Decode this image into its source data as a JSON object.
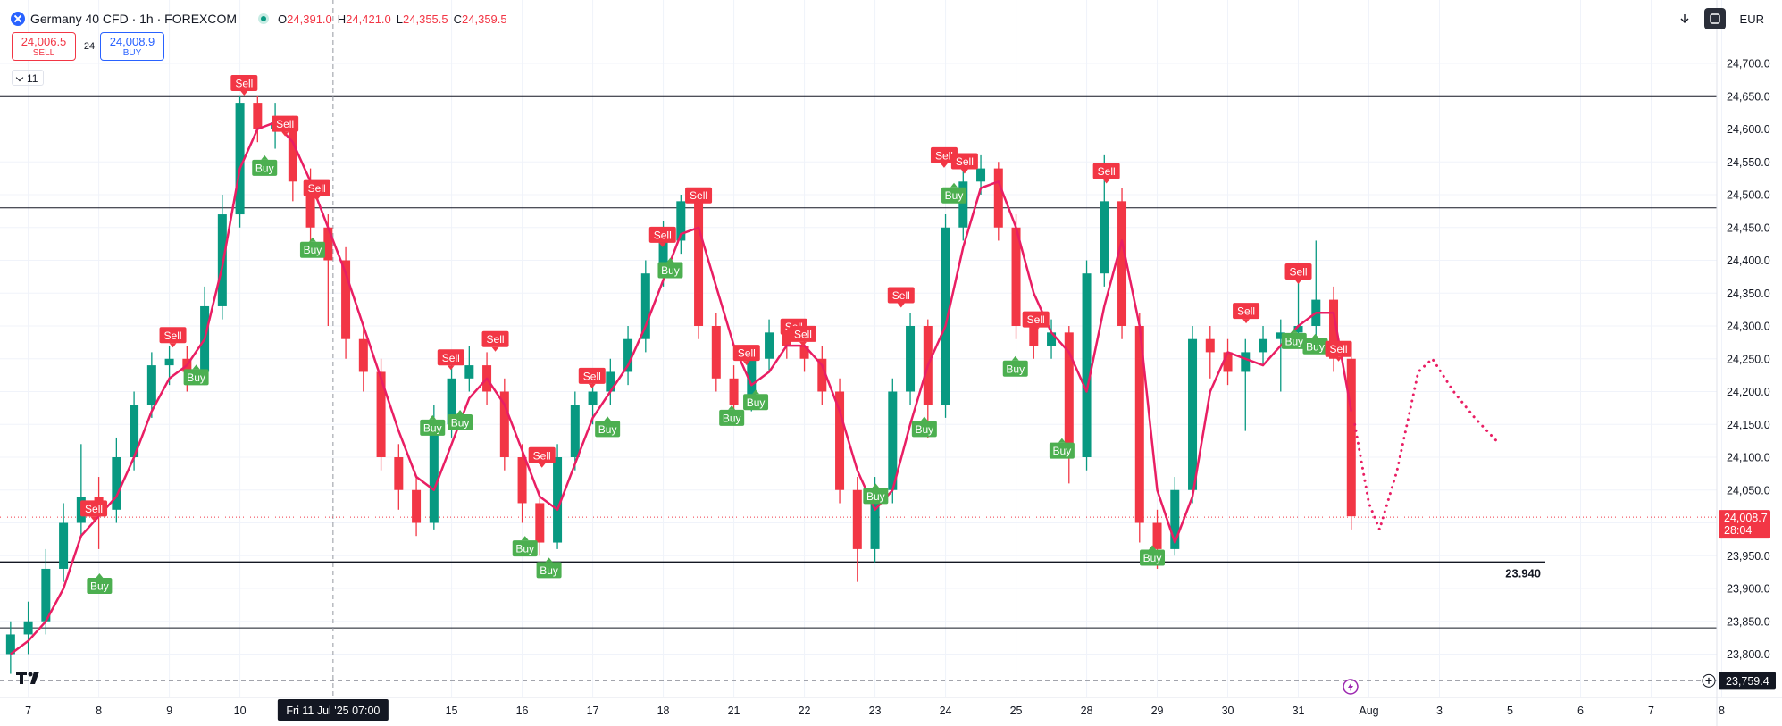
{
  "header": {
    "symbol": "Germany 40 CFD · 1h · FOREXCOM",
    "ohlc": [
      {
        "key": "O",
        "value": "24,391.0"
      },
      {
        "key": "H",
        "value": "24,421.0"
      },
      {
        "key": "L",
        "value": "24,355.5"
      },
      {
        "key": "C",
        "value": "24,359.5"
      }
    ],
    "sell": {
      "price": "24,006.5",
      "label": "SELL"
    },
    "spread": "24",
    "buy": {
      "price": "24,008.9",
      "label": "BUY"
    },
    "indicators": "11",
    "currency": "EUR"
  },
  "chart_data": {
    "type": "candlestick",
    "up_color": "#089981",
    "down_color": "#f23645",
    "ma_color": "#e91e63",
    "grid": true,
    "xlim": [
      -0.4,
      24.5
    ],
    "ylim": [
      23700,
      24800
    ],
    "xticks": [
      {
        "value": 0,
        "label": "7"
      },
      {
        "value": 1,
        "label": "8"
      },
      {
        "value": 2,
        "label": "9"
      },
      {
        "value": 3,
        "label": "10"
      },
      {
        "value": 6,
        "label": "15"
      },
      {
        "value": 7,
        "label": "16"
      },
      {
        "value": 8,
        "label": "17"
      },
      {
        "value": 9,
        "label": "18"
      },
      {
        "value": 10,
        "label": "21"
      },
      {
        "value": 11,
        "label": "22"
      },
      {
        "value": 12,
        "label": "23"
      },
      {
        "value": 13,
        "label": "24"
      },
      {
        "value": 14,
        "label": "25"
      },
      {
        "value": 15,
        "label": "28"
      },
      {
        "value": 16,
        "label": "29"
      },
      {
        "value": 17,
        "label": "30"
      },
      {
        "value": 18,
        "label": "31"
      },
      {
        "value": 19,
        "label": "Aug"
      },
      {
        "value": 20,
        "label": "3"
      },
      {
        "value": 21,
        "label": "5"
      },
      {
        "value": 22,
        "label": "6"
      },
      {
        "value": 23,
        "label": "7"
      },
      {
        "value": 24,
        "label": "8"
      }
    ],
    "yticks": [
      {
        "value": 23800,
        "label": "23,800.0"
      },
      {
        "value": 23850,
        "label": "23,850.0"
      },
      {
        "value": 23900,
        "label": "23,900.0"
      },
      {
        "value": 23950,
        "label": "23,950.0"
      },
      {
        "value": 24000,
        "label": "24,000.0"
      },
      {
        "value": 24050,
        "label": "24,050.0"
      },
      {
        "value": 24100,
        "label": "24,100.0"
      },
      {
        "value": 24150,
        "label": "24,150.0"
      },
      {
        "value": 24200,
        "label": "24,200.0"
      },
      {
        "value": 24250,
        "label": "24,250.0"
      },
      {
        "value": 24300,
        "label": "24,300.0"
      },
      {
        "value": 24350,
        "label": "24,350.0"
      },
      {
        "value": 24400,
        "label": "24,400.0"
      },
      {
        "value": 24450,
        "label": "24,450.0"
      },
      {
        "value": 24500,
        "label": "24,500.0"
      },
      {
        "value": 24550,
        "label": "24,550.0"
      },
      {
        "value": 24600,
        "label": "24,600.0"
      },
      {
        "value": 24650,
        "label": "24,650.0"
      },
      {
        "value": 24700,
        "label": "24,700.0"
      }
    ],
    "x": [
      -0.25,
      0,
      0.25,
      0.5,
      0.75,
      1,
      1.25,
      1.5,
      1.75,
      2,
      2.25,
      2.5,
      2.75,
      3,
      3.25,
      3.5,
      3.75,
      4,
      4.25,
      4.5,
      4.75,
      5,
      5.25,
      5.5,
      5.75,
      6,
      6.25,
      6.5,
      6.75,
      7,
      7.25,
      7.5,
      7.75,
      8,
      8.25,
      8.5,
      8.75,
      9,
      9.25,
      9.5,
      9.75,
      10,
      10.25,
      10.5,
      10.75,
      11,
      11.25,
      11.5,
      11.75,
      12,
      12.25,
      12.5,
      12.75,
      13,
      13.25,
      13.5,
      13.75,
      14,
      14.25,
      14.5,
      14.75,
      15,
      15.25,
      15.5,
      15.75,
      16,
      16.25,
      16.5,
      16.75,
      17,
      17.25,
      17.5,
      17.75,
      18,
      18.25,
      18.5,
      18.75
    ],
    "candles": [
      [
        23800,
        23850,
        23770,
        23830
      ],
      [
        23830,
        23880,
        23800,
        23850
      ],
      [
        23850,
        23960,
        23830,
        23930
      ],
      [
        23930,
        24030,
        23910,
        24000
      ],
      [
        24000,
        24120,
        23980,
        24040
      ],
      [
        24040,
        24070,
        23960,
        24020
      ],
      [
        24020,
        24130,
        24000,
        24100
      ],
      [
        24100,
        24200,
        24080,
        24180
      ],
      [
        24180,
        24260,
        24160,
        24240
      ],
      [
        24240,
        24270,
        24210,
        24250
      ],
      [
        24250,
        24270,
        24200,
        24230
      ],
      [
        24230,
        24360,
        24210,
        24330
      ],
      [
        24330,
        24500,
        24310,
        24470
      ],
      [
        24470,
        24650,
        24450,
        24640
      ],
      [
        24640,
        24650,
        24580,
        24600
      ],
      [
        24600,
        24640,
        24570,
        24610
      ],
      [
        24610,
        24620,
        24490,
        24520
      ],
      [
        24520,
        24540,
        24420,
        24450
      ],
      [
        24450,
        24470,
        24300,
        24400
      ],
      [
        24400,
        24420,
        24250,
        24280
      ],
      [
        24280,
        24300,
        24200,
        24230
      ],
      [
        24230,
        24250,
        24080,
        24100
      ],
      [
        24100,
        24120,
        24020,
        24050
      ],
      [
        24050,
        24070,
        23980,
        24000
      ],
      [
        24000,
        24180,
        23990,
        24150
      ],
      [
        24150,
        24250,
        24130,
        24220
      ],
      [
        24220,
        24270,
        24200,
        24240
      ],
      [
        24240,
        24260,
        24180,
        24200
      ],
      [
        24200,
        24220,
        24080,
        24100
      ],
      [
        24100,
        24120,
        24000,
        24030
      ],
      [
        24030,
        24050,
        23950,
        23970
      ],
      [
        23970,
        24120,
        23960,
        24100
      ],
      [
        24100,
        24200,
        24080,
        24180
      ],
      [
        24180,
        24220,
        24150,
        24200
      ],
      [
        24200,
        24250,
        24180,
        24230
      ],
      [
        24230,
        24300,
        24210,
        24280
      ],
      [
        24280,
        24400,
        24260,
        24380
      ],
      [
        24380,
        24460,
        24360,
        24430
      ],
      [
        24430,
        24500,
        24410,
        24490
      ],
      [
        24490,
        24500,
        24280,
        24300
      ],
      [
        24300,
        24320,
        24200,
        24220
      ],
      [
        24220,
        24240,
        24160,
        24180
      ],
      [
        24180,
        24270,
        24170,
        24250
      ],
      [
        24250,
        24310,
        24230,
        24290
      ],
      [
        24290,
        24310,
        24250,
        24270
      ],
      [
        24270,
        24290,
        24230,
        24250
      ],
      [
        24250,
        24270,
        24180,
        24200
      ],
      [
        24200,
        24220,
        24030,
        24050
      ],
      [
        24050,
        24070,
        23910,
        23960
      ],
      [
        23960,
        24070,
        23940,
        24050
      ],
      [
        24050,
        24220,
        24030,
        24200
      ],
      [
        24200,
        24320,
        24180,
        24300
      ],
      [
        24300,
        24310,
        24130,
        24180
      ],
      [
        24180,
        24470,
        24160,
        24450
      ],
      [
        24450,
        24550,
        24430,
        24520
      ],
      [
        24520,
        24560,
        24500,
        24540
      ],
      [
        24540,
        24550,
        24430,
        24450
      ],
      [
        24450,
        24470,
        24280,
        24300
      ],
      [
        24300,
        24320,
        24250,
        24270
      ],
      [
        24270,
        24310,
        24250,
        24290
      ],
      [
        24290,
        24300,
        24060,
        24100
      ],
      [
        24100,
        24400,
        24080,
        24380
      ],
      [
        24380,
        24560,
        24360,
        24490
      ],
      [
        24490,
        24510,
        24280,
        24300
      ],
      [
        24300,
        24320,
        23970,
        24000
      ],
      [
        24000,
        24020,
        23930,
        23960
      ],
      [
        23960,
        24070,
        23950,
        24050
      ],
      [
        24050,
        24300,
        24030,
        24280
      ],
      [
        24280,
        24300,
        24220,
        24260
      ],
      [
        24260,
        24280,
        24210,
        24230
      ],
      [
        24230,
        24280,
        24140,
        24260
      ],
      [
        24260,
        24300,
        24240,
        24280
      ],
      [
        24280,
        24310,
        24200,
        24290
      ],
      [
        24290,
        24380,
        24270,
        24300
      ],
      [
        24300,
        24430,
        24280,
        24340
      ],
      [
        24340,
        24360,
        24230,
        24250
      ],
      [
        24250,
        24270,
        23990,
        24010
      ]
    ],
    "ma": [
      23800,
      23820,
      23850,
      23900,
      23980,
      24010,
      24040,
      24100,
      24170,
      24220,
      24240,
      24280,
      24390,
      24540,
      24600,
      24610,
      24580,
      24520,
      24450,
      24380,
      24300,
      24220,
      24140,
      24070,
      24050,
      24120,
      24190,
      24220,
      24180,
      24110,
      24040,
      24020,
      24090,
      24160,
      24200,
      24240,
      24300,
      24370,
      24440,
      24450,
      24360,
      24270,
      24210,
      24230,
      24270,
      24270,
      24240,
      24170,
      24080,
      24020,
      24050,
      24150,
      24240,
      24300,
      24420,
      24510,
      24520,
      24450,
      24350,
      24290,
      24260,
      24200,
      24330,
      24430,
      24300,
      24050,
      23970,
      24040,
      24200,
      24260,
      24250,
      24240,
      24270,
      24300,
      24320,
      24320,
      24170
    ],
    "projection": {
      "x": [
        18.8,
        19.0,
        19.15,
        19.4,
        19.7,
        19.9,
        20.2,
        20.5,
        20.85
      ],
      "y": [
        24150,
        24030,
        23990,
        24080,
        24230,
        24250,
        24200,
        24160,
        24120
      ]
    },
    "signals": [
      {
        "x": 3.06,
        "y": 24670,
        "type": "Sell"
      },
      {
        "x": 3.64,
        "y": 24608,
        "type": "Sell"
      },
      {
        "x": 3.35,
        "y": 24541,
        "type": "Buy"
      },
      {
        "x": 4.09,
        "y": 24510,
        "type": "Sell"
      },
      {
        "x": 4.03,
        "y": 24416,
        "type": "Buy"
      },
      {
        "x": 2.05,
        "y": 24286,
        "type": "Sell"
      },
      {
        "x": 2.38,
        "y": 24222,
        "type": "Buy"
      },
      {
        "x": 0.93,
        "y": 24022,
        "type": "Sell"
      },
      {
        "x": 1.01,
        "y": 23904,
        "type": "Buy"
      },
      {
        "x": 5.99,
        "y": 24252,
        "type": "Sell"
      },
      {
        "x": 6.62,
        "y": 24280,
        "type": "Sell"
      },
      {
        "x": 5.73,
        "y": 24145,
        "type": "Buy"
      },
      {
        "x": 6.12,
        "y": 24153,
        "type": "Buy"
      },
      {
        "x": 7.28,
        "y": 24103,
        "type": "Sell"
      },
      {
        "x": 7.04,
        "y": 23961,
        "type": "Buy"
      },
      {
        "x": 7.38,
        "y": 23928,
        "type": "Buy"
      },
      {
        "x": 7.99,
        "y": 24224,
        "type": "Sell"
      },
      {
        "x": 8.21,
        "y": 24143,
        "type": "Buy"
      },
      {
        "x": 8.99,
        "y": 24439,
        "type": "Sell"
      },
      {
        "x": 9.5,
        "y": 24499,
        "type": "Sell"
      },
      {
        "x": 9.1,
        "y": 24385,
        "type": "Buy"
      },
      {
        "x": 10.18,
        "y": 24259,
        "type": "Sell"
      },
      {
        "x": 9.97,
        "y": 24160,
        "type": "Buy"
      },
      {
        "x": 10.31,
        "y": 24184,
        "type": "Buy"
      },
      {
        "x": 10.85,
        "y": 24299,
        "type": "Sell"
      },
      {
        "x": 10.98,
        "y": 24288,
        "type": "Sell"
      },
      {
        "x": 12.01,
        "y": 24041,
        "type": "Buy"
      },
      {
        "x": 12.37,
        "y": 24347,
        "type": "Sell"
      },
      {
        "x": 12.7,
        "y": 24143,
        "type": "Buy"
      },
      {
        "x": 12.98,
        "y": 24560,
        "type": "Sell"
      },
      {
        "x": 13.27,
        "y": 24551,
        "type": "Sell"
      },
      {
        "x": 13.12,
        "y": 24499,
        "type": "Buy"
      },
      {
        "x": 13.99,
        "y": 24235,
        "type": "Buy"
      },
      {
        "x": 14.28,
        "y": 24310,
        "type": "Sell"
      },
      {
        "x": 14.65,
        "y": 24110,
        "type": "Buy"
      },
      {
        "x": 15.28,
        "y": 24536,
        "type": "Sell"
      },
      {
        "x": 15.93,
        "y": 23947,
        "type": "Buy"
      },
      {
        "x": 17.26,
        "y": 24323,
        "type": "Sell"
      },
      {
        "x": 18.0,
        "y": 24383,
        "type": "Sell"
      },
      {
        "x": 17.94,
        "y": 24277,
        "type": "Buy"
      },
      {
        "x": 18.24,
        "y": 24269,
        "type": "Buy"
      },
      {
        "x": 18.57,
        "y": 24265,
        "type": "Sell"
      }
    ],
    "level_lines": [
      {
        "value": 24650,
        "width": 2
      },
      {
        "value": 24480,
        "width": 1
      },
      {
        "value": 23940,
        "width": 2,
        "label": "23.940"
      },
      {
        "value": 23840,
        "width": 1
      }
    ],
    "last_price": {
      "value": 24008.7,
      "label": "24,008.7",
      "countdown": "28:04"
    },
    "crosshair": {
      "x": 4.32,
      "x_label": "Fri 11 Jul '25  07:00",
      "y": 23759.4,
      "y_label": "23,759.4"
    }
  }
}
